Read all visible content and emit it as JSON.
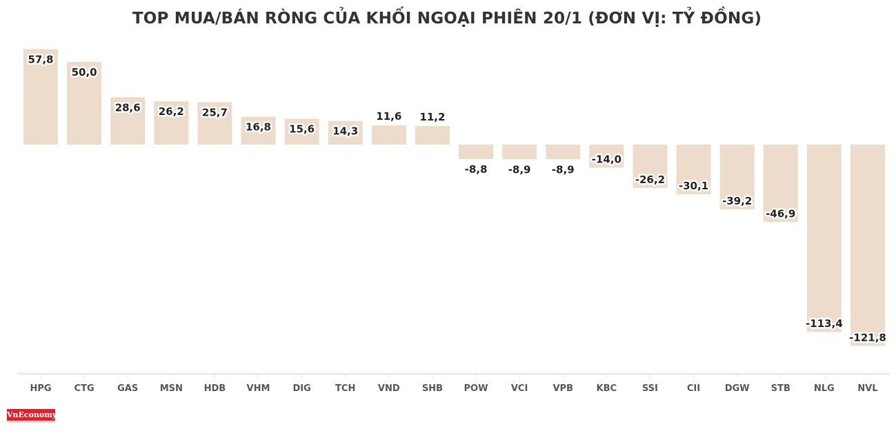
{
  "chart_data": {
    "type": "bar",
    "title": "TOP MUA/BÁN RÒNG CỦA KHỐI NGOẠI PHIÊN 20/1 (ĐƠN VỊ: TỶ ĐỒNG)",
    "categories": [
      "HPG",
      "CTG",
      "GAS",
      "MSN",
      "HDB",
      "VHM",
      "DIG",
      "TCH",
      "VND",
      "SHB",
      "POW",
      "VCI",
      "VPB",
      "KBC",
      "SSI",
      "CII",
      "DGW",
      "STB",
      "NLG",
      "NVL"
    ],
    "values": [
      57.8,
      50.0,
      28.6,
      26.2,
      25.7,
      16.8,
      15.6,
      14.3,
      11.6,
      11.2,
      -8.8,
      -8.9,
      -8.9,
      -14.0,
      -26.2,
      -30.1,
      -39.2,
      -46.9,
      -113.4,
      -121.8
    ],
    "value_labels": [
      "57,8",
      "50,0",
      "28,6",
      "26,2",
      "25,7",
      "16,8",
      "15,6",
      "14,3",
      "11,6",
      "11,2",
      "-8,8",
      "-8,9",
      "-8,9",
      "-14,0",
      "-26,2",
      "-30,1",
      "-39,2",
      "-46,9",
      "-113,4",
      "-121,8"
    ],
    "xlabel": "",
    "ylabel": "",
    "ylim": [
      -130,
      60
    ],
    "grid": false,
    "bar_color": "#eddccb"
  },
  "logo": "VnEconomy"
}
